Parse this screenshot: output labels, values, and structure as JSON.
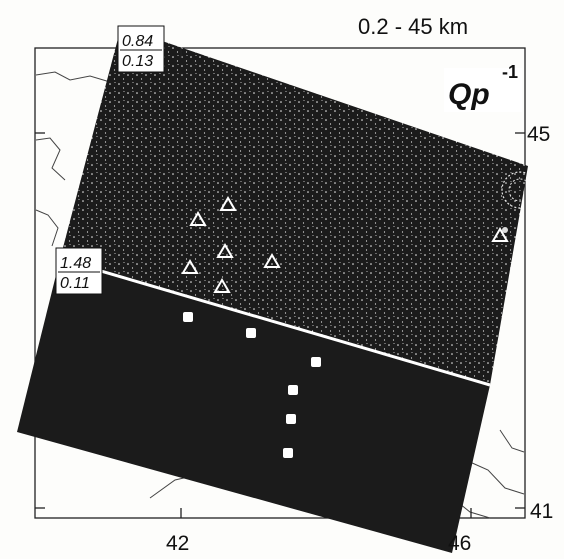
{
  "depth_range": "0.2 - 45 km",
  "quantity": {
    "base": "Qp",
    "exponent": "-1"
  },
  "upper_block": {
    "top_value": "0.84",
    "bottom_value": "0.13"
  },
  "lower_block": {
    "top_value": "1.48",
    "bottom_value": "0.11"
  },
  "axes": {
    "lon_ticks": [
      "42",
      "46"
    ],
    "lat_ticks": [
      "45",
      "41"
    ]
  },
  "colors": {
    "block": "#1b1b1b",
    "speckle": "#f2f2f2",
    "marker": "#ffffff",
    "frame": "#222222",
    "background": "#fdfdfb"
  },
  "markers": {
    "triangles_count": 7,
    "squares_count": 6
  }
}
